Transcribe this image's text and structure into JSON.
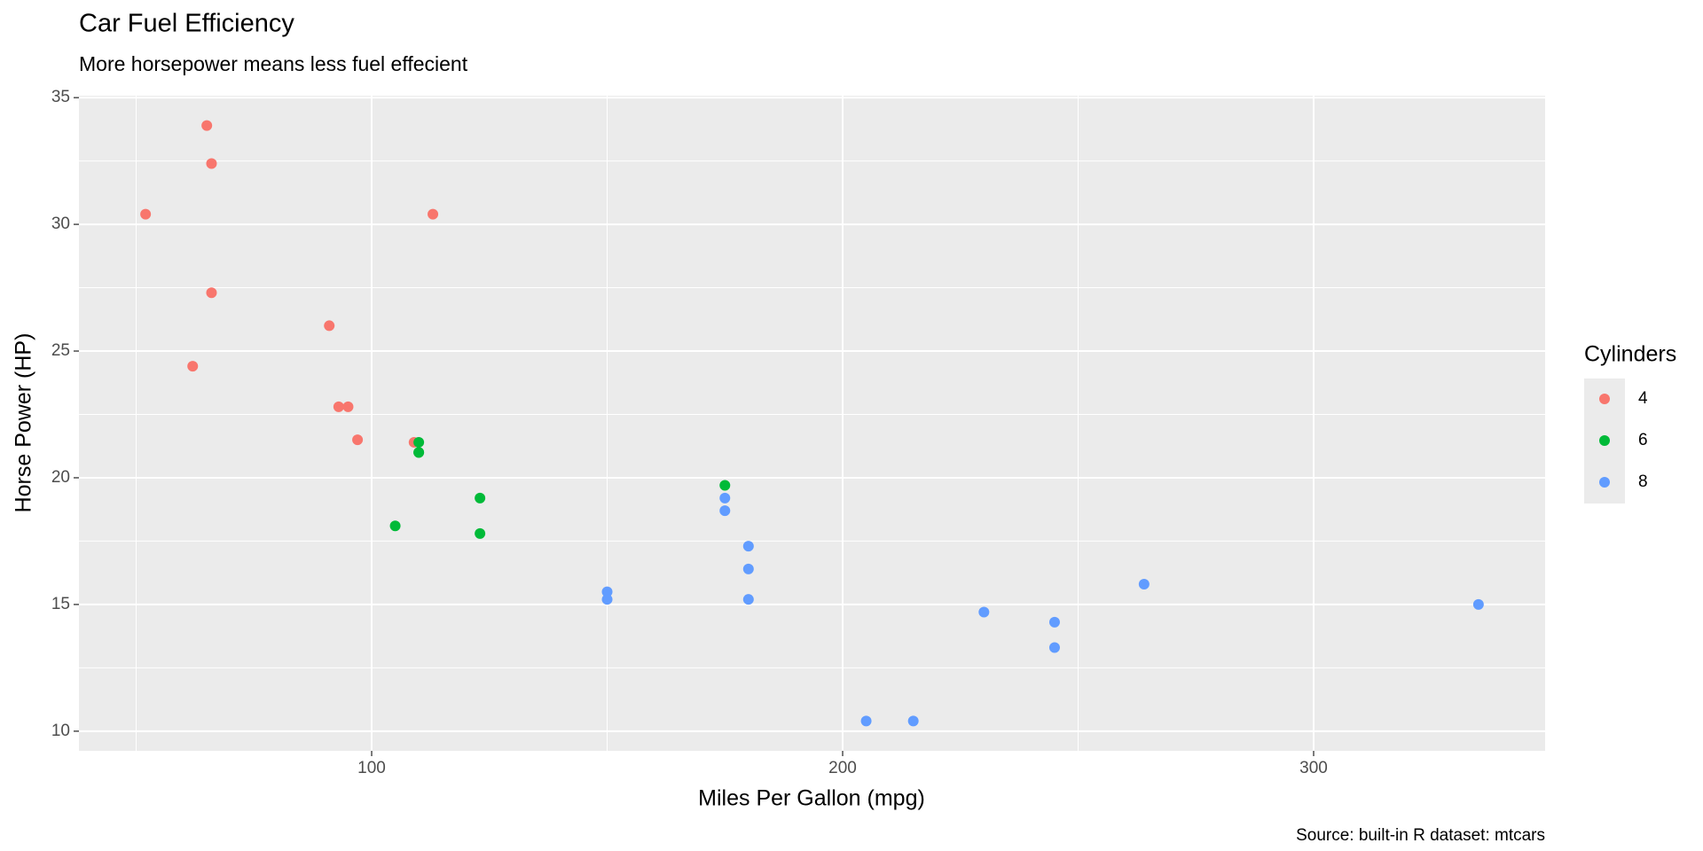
{
  "chart_data": {
    "type": "scatter",
    "title": "Car Fuel Efficiency",
    "subtitle": "More horsepower means less fuel effecient",
    "x_label": "Miles Per Gallon (mpg)",
    "y_label": "Horse Power (HP)",
    "caption": "Source: built-in R dataset: mtcars",
    "legend_title": "Cylinders",
    "legend_position": "right",
    "grid": true,
    "xlim": [
      37.85,
      349.15
    ],
    "xticks": [
      100,
      200,
      300
    ],
    "ylim": [
      9.225,
      35.075
    ],
    "yticks": [
      10,
      15,
      20,
      25,
      30,
      35
    ],
    "series": [
      {
        "name": "4",
        "color": "#F8766D",
        "x": [
          93,
          62,
          95,
          66,
          52,
          65,
          97,
          66,
          91,
          113,
          109
        ],
        "values": [
          22.8,
          24.4,
          22.8,
          32.4,
          30.4,
          33.9,
          21.5,
          27.3,
          26,
          30.4,
          21.4
        ]
      },
      {
        "name": "6",
        "color": "#00BA38",
        "x": [
          110,
          110,
          110,
          105,
          123,
          123,
          175
        ],
        "values": [
          21,
          21,
          21.4,
          18.1,
          19.2,
          17.8,
          19.7
        ]
      },
      {
        "name": "8",
        "color": "#619CFF",
        "x": [
          175,
          245,
          180,
          180,
          180,
          205,
          215,
          230,
          150,
          150,
          245,
          175,
          264,
          335
        ],
        "values": [
          18.7,
          14.3,
          16.4,
          17.3,
          15.2,
          10.4,
          10.4,
          14.7,
          15.5,
          15.2,
          13.3,
          19.2,
          15.8,
          15
        ]
      }
    ]
  }
}
